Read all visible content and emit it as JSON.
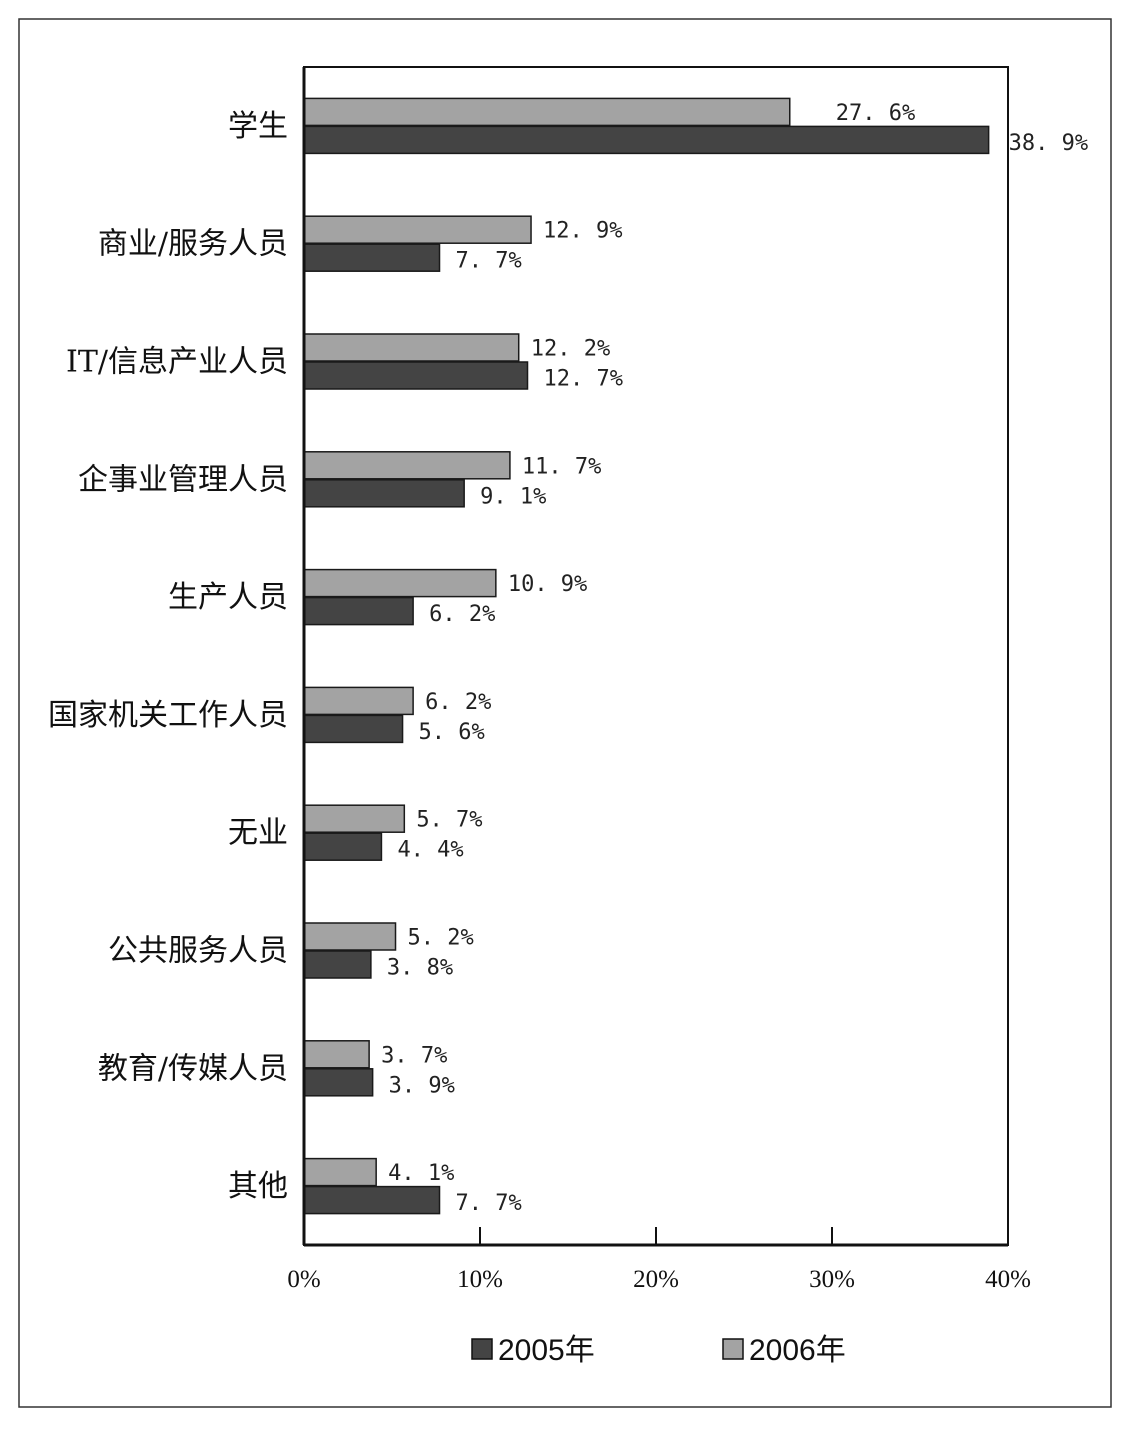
{
  "chart_data": {
    "type": "bar",
    "orientation": "horizontal",
    "categories": [
      "学生",
      "商业/服务人员",
      "IT/信息产业人员",
      "企事业管理人员",
      "生产人员",
      "国家机关工作人员",
      "无业",
      "公共服务人员",
      "教育/传媒人员",
      "其他"
    ],
    "series": [
      {
        "name": "2005年",
        "color": "#444444",
        "values": [
          38.9,
          7.7,
          12.7,
          9.1,
          6.2,
          5.6,
          4.4,
          3.8,
          3.9,
          7.7
        ],
        "labels": [
          "38. 9%",
          "7. 7%",
          "12. 7%",
          "9. 1%",
          "6. 2%",
          "5. 6%",
          "4. 4%",
          "3. 8%",
          "3. 9%",
          "7. 7%"
        ]
      },
      {
        "name": "2006年",
        "color": "#a3a3a3",
        "values": [
          27.6,
          12.9,
          12.2,
          11.7,
          10.9,
          6.2,
          5.7,
          5.2,
          3.7,
          4.1
        ],
        "labels": [
          "27. 6%",
          "12. 9%",
          "12. 2%",
          "11. 7%",
          "10. 9%",
          "6. 2%",
          "5. 7%",
          "5. 2%",
          "3. 7%",
          "4. 1%"
        ]
      }
    ],
    "xlim": [
      0,
      40
    ],
    "xticks": [
      "0%",
      "10%",
      "20%",
      "30%",
      "40%"
    ],
    "xlabel": "",
    "ylabel": "",
    "legend_position": "bottom",
    "grid": false
  }
}
